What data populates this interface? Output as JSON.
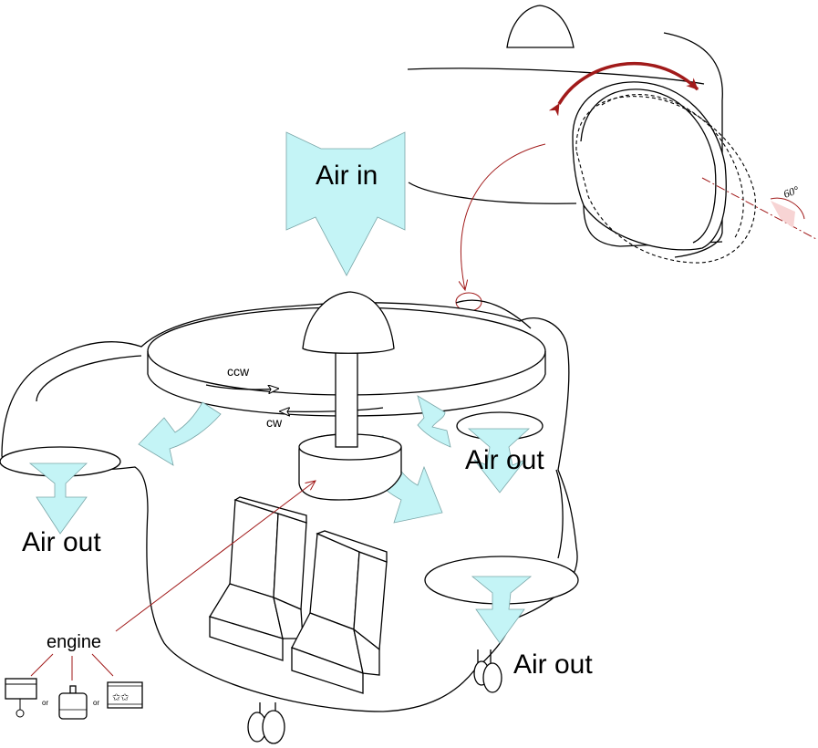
{
  "labels": {
    "air_in": "Air in",
    "air_out_left": "Air out",
    "air_out_center": "Air out",
    "air_out_right": "Air out",
    "ccw": "ccw",
    "cw": "cw",
    "engine": "engine",
    "or_1": "or",
    "or_2": "or",
    "angle": "60°"
  },
  "colors": {
    "airflow": "#c4f4f6",
    "annotation_red": "#a11a1a",
    "outline": "#000000"
  },
  "icons": [
    "piston-engine-icon",
    "electric-motor-icon",
    "turbine-engine-icon"
  ]
}
